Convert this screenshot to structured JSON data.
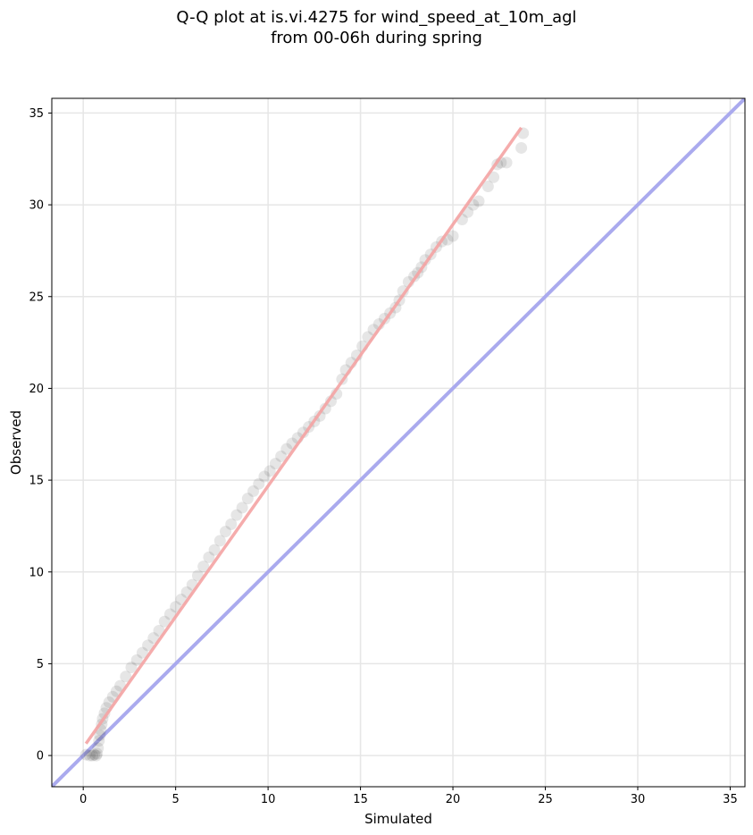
{
  "chart_data": {
    "type": "scatter",
    "title": [
      "Q-Q plot at is.vi.4275 for wind_speed_at_10m_agl",
      "from 00-06h during spring"
    ],
    "xlabel": "Simulated",
    "ylabel": "Observed",
    "xlim": [
      -1.7,
      35.8
    ],
    "ylim": [
      -1.7,
      35.8
    ],
    "xticks": [
      0,
      5,
      10,
      15,
      20,
      25,
      30,
      35
    ],
    "yticks": [
      0,
      5,
      10,
      15,
      20,
      25,
      30,
      35
    ],
    "xtick_labels": [
      "0",
      "5",
      "10",
      "15",
      "20",
      "25",
      "30",
      "35"
    ],
    "ytick_labels": [
      "0",
      "5",
      "10",
      "15",
      "20",
      "25",
      "30",
      "35"
    ],
    "grid": true,
    "reference_line": {
      "name": "1:1",
      "color": "#aaaaee",
      "points": [
        [
          -1.7,
          -1.7
        ],
        [
          35.8,
          35.8
        ]
      ]
    },
    "fit_line": {
      "color": "#f4a3a3",
      "points": [
        [
          0.15,
          0.65
        ],
        [
          23.7,
          34.2
        ]
      ]
    },
    "marker_color": "#333333",
    "series": [
      {
        "name": "",
        "x": [
          0.15,
          0.35,
          0.5,
          0.6,
          0.7,
          0.75,
          0.8,
          0.85,
          0.9,
          0.95,
          1.0,
          1.05,
          1.15,
          1.25,
          1.4,
          1.6,
          1.8,
          2.0,
          2.3,
          2.6,
          2.9,
          3.2,
          3.5,
          3.8,
          4.1,
          4.4,
          4.7,
          5.0,
          5.3,
          5.6,
          5.9,
          6.2,
          6.5,
          6.8,
          7.1,
          7.4,
          7.7,
          8.0,
          8.3,
          8.6,
          8.9,
          9.2,
          9.5,
          9.8,
          10.1,
          10.4,
          10.7,
          11.0,
          11.3,
          11.6,
          11.9,
          12.2,
          12.5,
          12.8,
          13.1,
          13.4,
          13.7,
          14.0,
          14.2,
          14.5,
          14.8,
          15.1,
          15.4,
          15.7,
          16.0,
          16.3,
          16.6,
          16.9,
          17.1,
          17.3,
          17.6,
          17.9,
          18.1,
          18.3,
          18.5,
          18.8,
          19.1,
          19.4,
          19.7,
          20.0,
          20.5,
          20.8,
          21.1,
          21.4,
          21.9,
          22.2,
          22.4,
          22.6,
          22.9,
          23.7,
          23.8
        ],
        "y": [
          0.05,
          0.0,
          0.0,
          0.05,
          0.0,
          0.1,
          0.4,
          0.8,
          1.1,
          1.4,
          1.7,
          2.0,
          2.3,
          2.6,
          2.9,
          3.2,
          3.5,
          3.8,
          4.3,
          4.8,
          5.2,
          5.6,
          6.0,
          6.4,
          6.8,
          7.3,
          7.7,
          8.1,
          8.5,
          8.9,
          9.3,
          9.8,
          10.3,
          10.8,
          11.2,
          11.7,
          12.2,
          12.6,
          13.1,
          13.5,
          14.0,
          14.4,
          14.8,
          15.2,
          15.5,
          15.9,
          16.3,
          16.7,
          17.0,
          17.3,
          17.6,
          17.9,
          18.2,
          18.5,
          18.9,
          19.3,
          19.7,
          20.5,
          21.0,
          21.4,
          21.8,
          22.3,
          22.8,
          23.2,
          23.5,
          23.8,
          24.1,
          24.4,
          24.8,
          25.3,
          25.8,
          26.1,
          26.3,
          26.6,
          27.0,
          27.3,
          27.7,
          28.0,
          28.1,
          28.3,
          29.2,
          29.6,
          30.0,
          30.2,
          31.0,
          31.5,
          32.2,
          32.3,
          32.3,
          33.1,
          33.9
        ]
      }
    ]
  }
}
